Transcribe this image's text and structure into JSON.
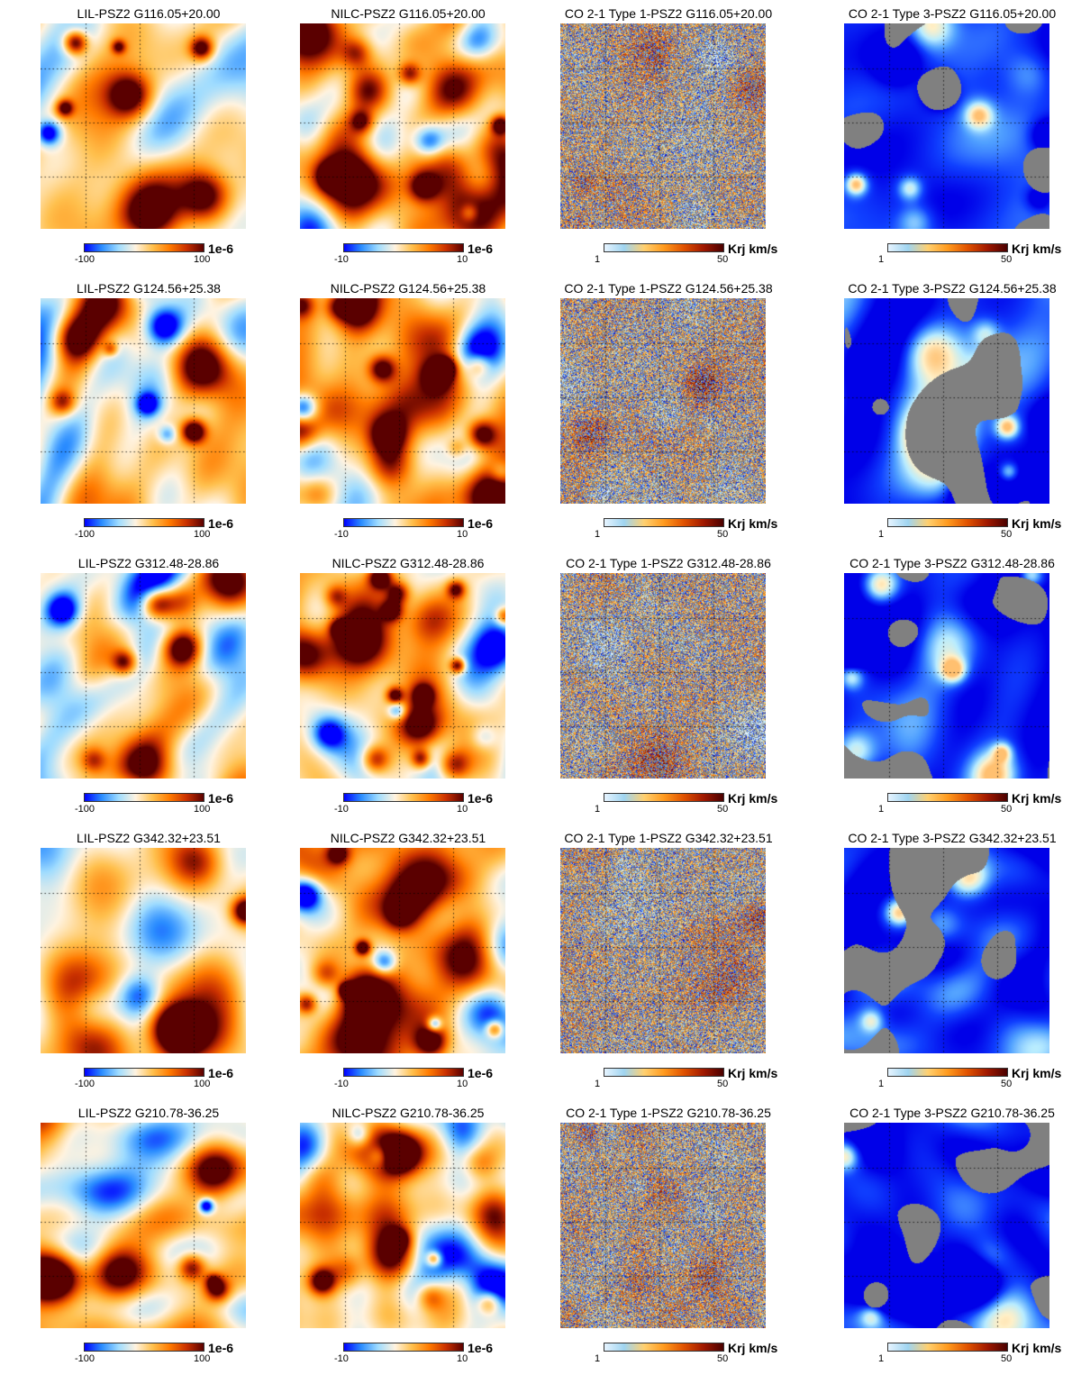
{
  "colormaps": {
    "planck": [
      "#0000ff",
      "#2a8cff",
      "#9fdcff",
      "#fff3e0",
      "#ffc04d",
      "#ff7a00",
      "#c93000",
      "#5a0000"
    ],
    "heat": [
      "#e6f4ff",
      "#9fd4f0",
      "#ffd070",
      "#ff9a1e",
      "#e05200",
      "#a01800",
      "#4a0000"
    ],
    "co_bad": "#808080"
  },
  "columns": [
    {
      "key": "lil",
      "prefix": "LIL-",
      "cmin": "-100",
      "cmax": "100",
      "unit": "1e-6",
      "cmap": "planck"
    },
    {
      "key": "nilc",
      "prefix": "NILC-",
      "cmin": "-10",
      "cmax": "10",
      "unit": "1e-6",
      "cmap": "planck"
    },
    {
      "key": "co1",
      "prefix": "CO 2-1 Type 1-",
      "cmin": "1",
      "cmax": "50",
      "unit": "Krj km/s",
      "cmap": "heat"
    },
    {
      "key": "co3",
      "prefix": "CO 2-1 Type 3-",
      "cmin": "1",
      "cmax": "50",
      "unit": "Krj km/s",
      "cmap": "heat"
    }
  ],
  "rows": [
    {
      "cluster": "PSZ2 G116.05+20.00",
      "titles": [
        "LIL-PSZ2 G116.05+20.00",
        "NILC-PSZ2 G116.05+20.00",
        "CO 2-1 Type 1-PSZ2 G116.05+20.00",
        "CO 2-1 Type 3-PSZ2 G116.05+20.00"
      ]
    },
    {
      "cluster": "PSZ2 G124.56+25.38",
      "titles": [
        "LIL-PSZ2 G124.56+25.38",
        "NILC-PSZ2 G124.56+25.38",
        "CO 2-1 Type 1-PSZ2 G124.56+25.38",
        "CO 2-1 Type 3-PSZ2 G124.56+25.38"
      ]
    },
    {
      "cluster": "PSZ2 G312.48-28.86",
      "titles": [
        "LIL-PSZ2 G312.48-28.86",
        "NILC-PSZ2 G312.48-28.86",
        "CO 2-1 Type 1-PSZ2 G312.48-28.86",
        "CO 2-1 Type 3-PSZ2 G312.48-28.86"
      ]
    },
    {
      "cluster": "PSZ2 G342.32+23.51",
      "titles": [
        "LIL-PSZ2 G342.32+23.51",
        "NILC-PSZ2 G342.32+23.51",
        "CO 2-1 Type 1-PSZ2 G342.32+23.51",
        "CO 2-1 Type 3-PSZ2 G342.32+23.51"
      ]
    },
    {
      "cluster": "PSZ2 G210.78-36.25",
      "titles": [
        "LIL-PSZ2 G210.78-36.25",
        "NILC-PSZ2 G210.78-36.25",
        "CO 2-1 Type 1-PSZ2 G210.78-36.25",
        "CO 2-1 Type 3-PSZ2 G210.78-36.25"
      ]
    }
  ]
}
